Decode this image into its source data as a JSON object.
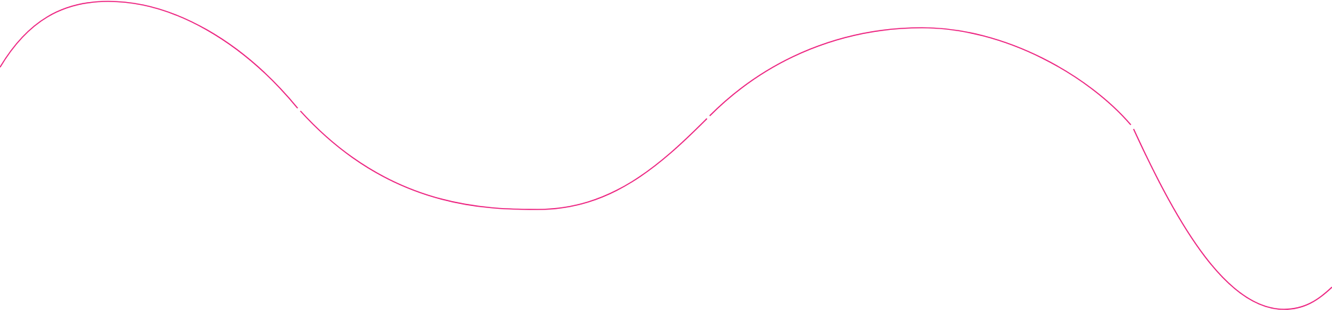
{
  "decoration": {
    "type": "wavy-line",
    "stroke_color": "#ec1c7c",
    "background_color": "#ffffff",
    "segments": 4
  }
}
